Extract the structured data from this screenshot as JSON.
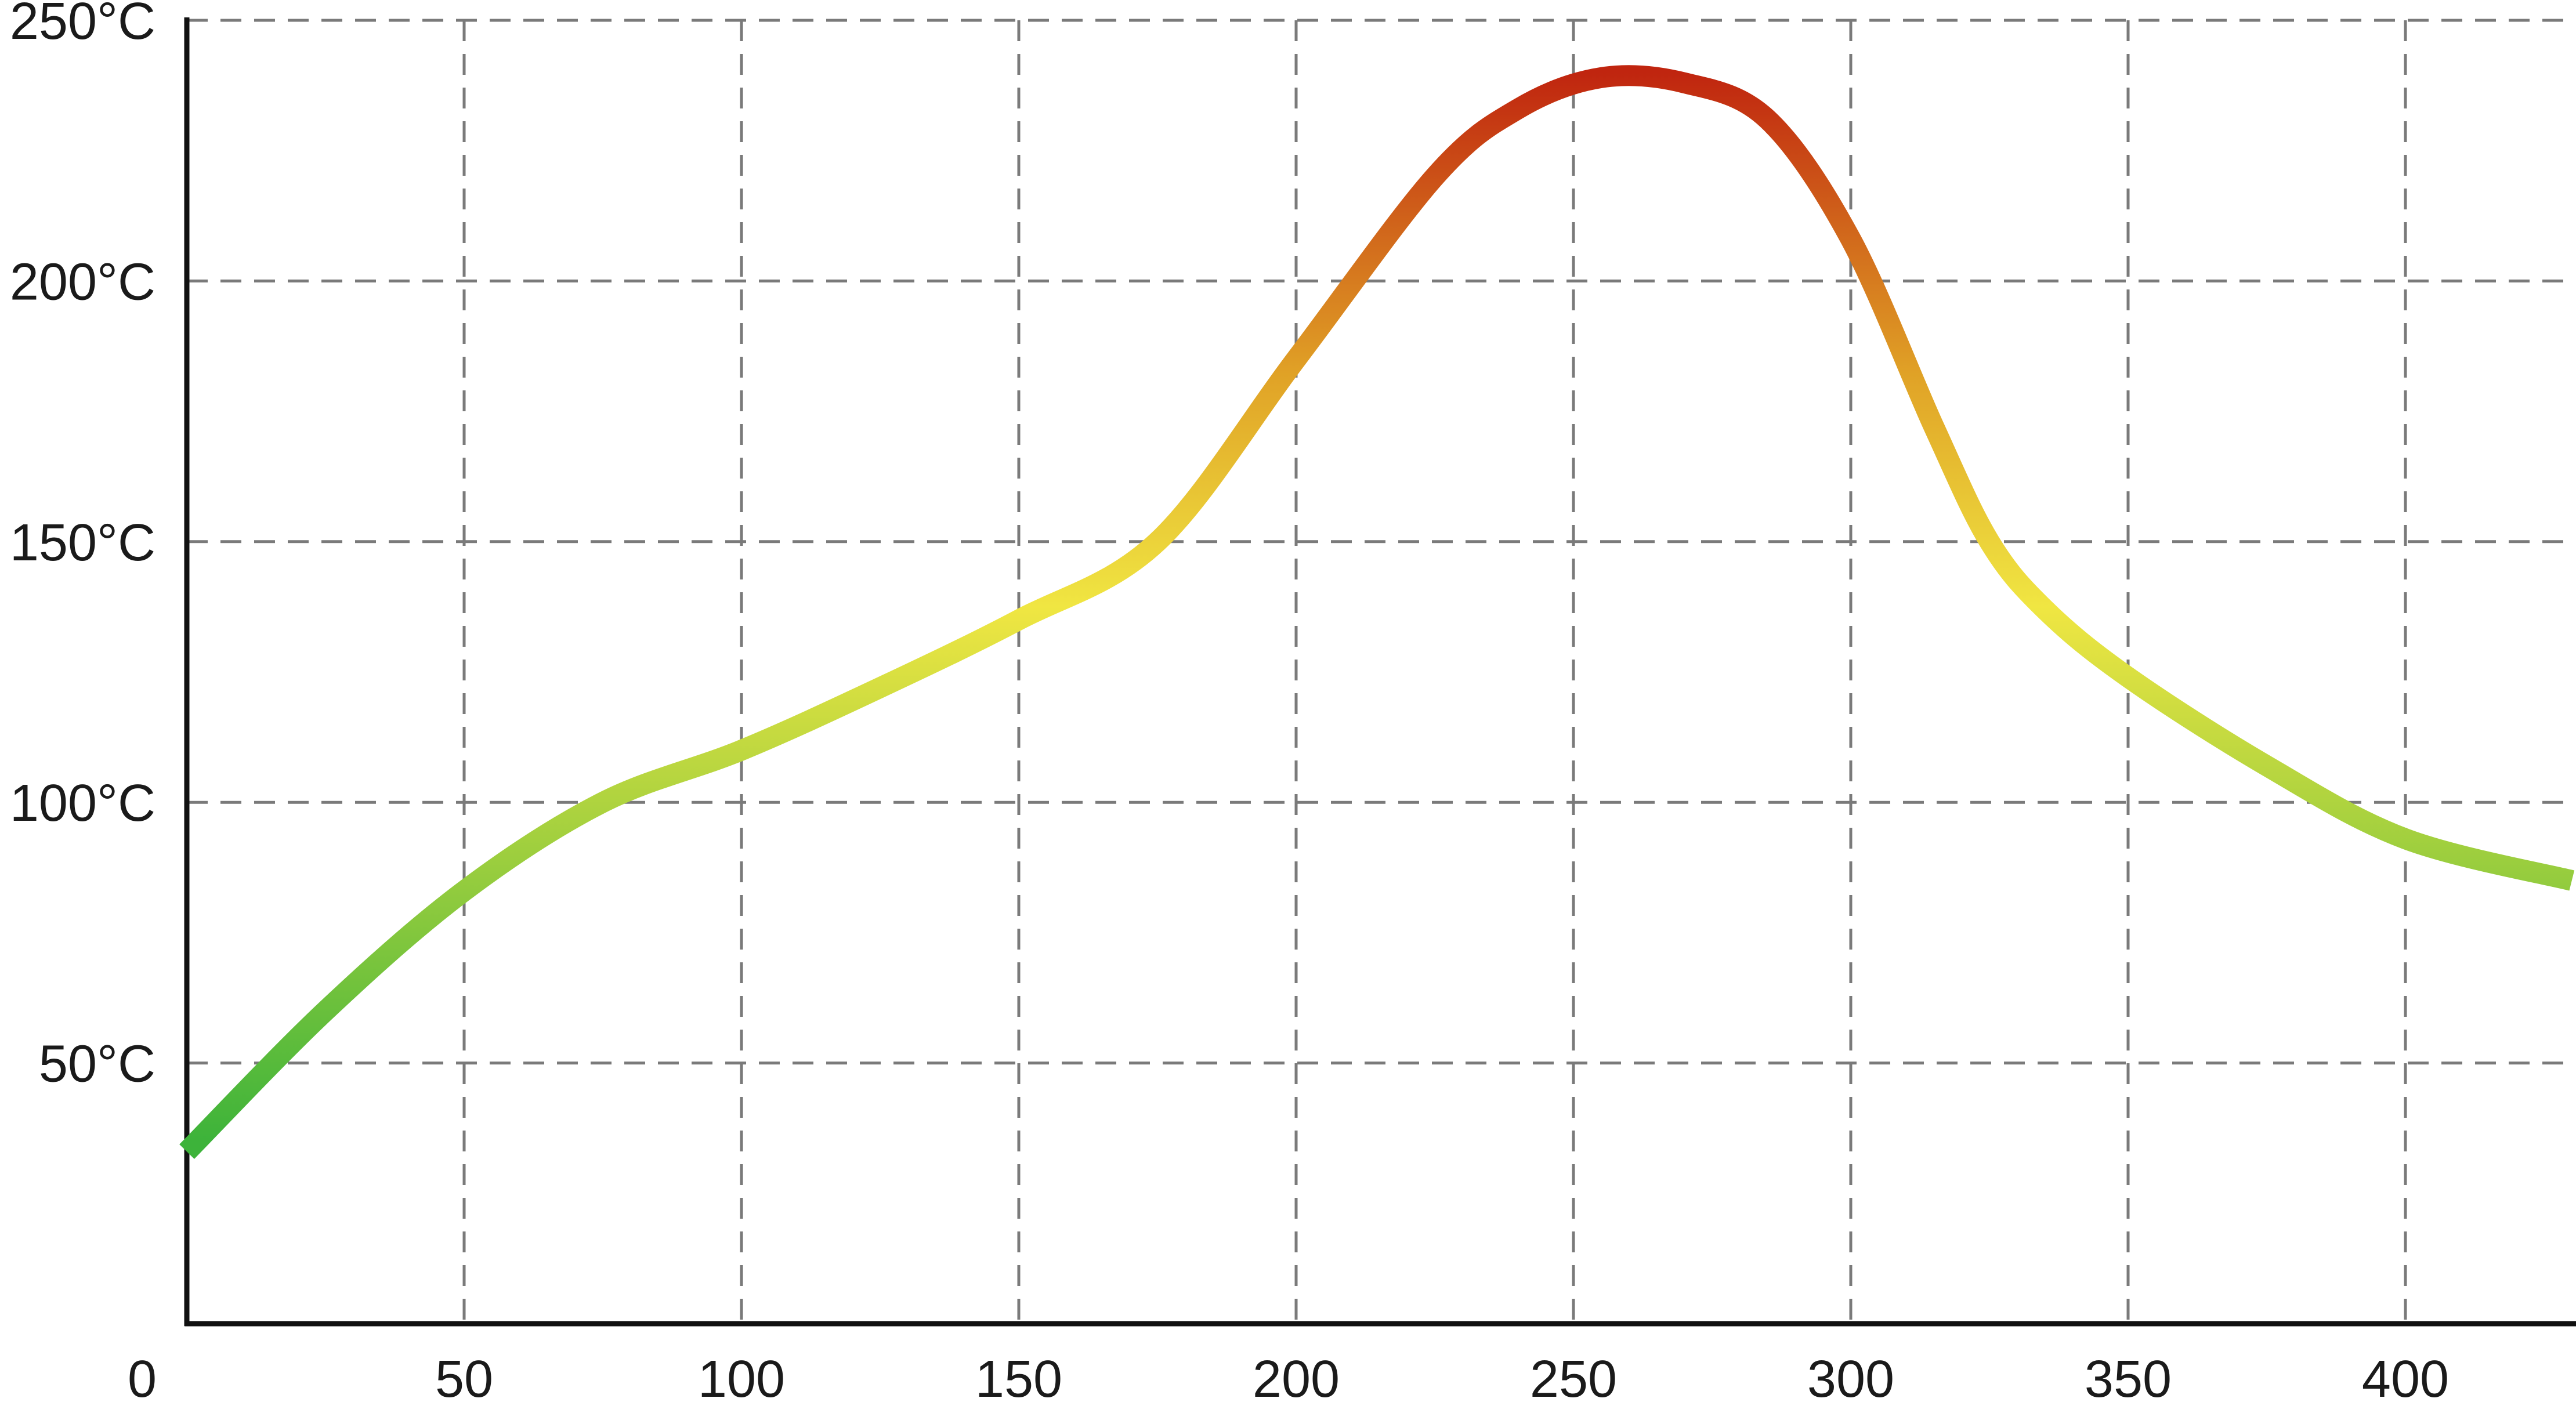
{
  "chart_data": {
    "type": "line",
    "title": "",
    "xlabel": "",
    "ylabel": "",
    "xlim": [
      0,
      430
    ],
    "ylim": [
      0,
      250
    ],
    "x_ticks": [
      0,
      50,
      100,
      150,
      200,
      250,
      300,
      350,
      400
    ],
    "x_tick_labels": [
      "0",
      "50",
      "100",
      "150",
      "200",
      "250",
      "300",
      "350",
      "400"
    ],
    "y_ticks": [
      50,
      100,
      150,
      200,
      250
    ],
    "y_tick_labels": [
      "50°C",
      "100°C",
      "150°C",
      "200°C",
      "250°C"
    ],
    "grid": true,
    "series": [
      {
        "x": [
          0,
          25,
          50,
          75,
          100,
          125,
          150,
          175,
          200,
          225,
          240,
          255,
          270,
          285,
          300,
          315,
          325,
          335,
          350,
          375,
          400,
          430
        ],
        "y": [
          33,
          60,
          83,
          100,
          110,
          122,
          135,
          150,
          185,
          220,
          233,
          239,
          238,
          231,
          208,
          172,
          150,
          137,
          124,
          107,
          93,
          85
        ]
      }
    ],
    "color_scale": {
      "low": "#3db33a",
      "mid": "#f0e642",
      "high": "#c0250f"
    }
  }
}
